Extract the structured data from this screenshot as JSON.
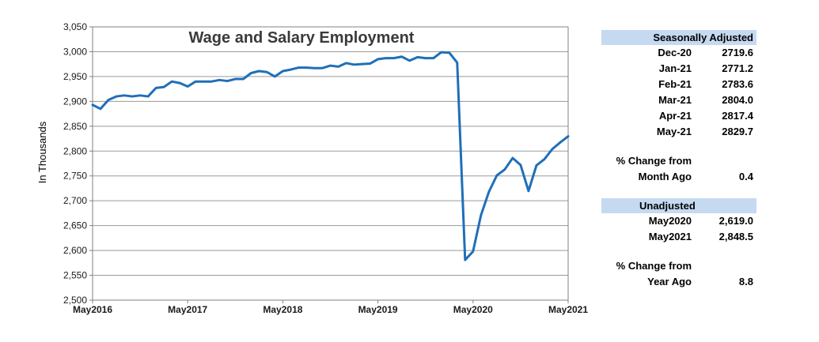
{
  "chart_data": {
    "type": "line",
    "title": "Wage and Salary Employment",
    "xlabel": "",
    "ylabel": "In Thousands",
    "ylim": [
      2500,
      3050
    ],
    "yticks": [
      2500,
      2550,
      2600,
      2650,
      2700,
      2750,
      2800,
      2850,
      2900,
      2950,
      3000,
      3050
    ],
    "ytick_labels": [
      "2,500",
      "2,550",
      "2,600",
      "2,650",
      "2,700",
      "2,750",
      "2,800",
      "2,850",
      "2,900",
      "2,950",
      "3,000",
      "3,050"
    ],
    "xticks": [
      "May2016",
      "May2017",
      "May2018",
      "May2019",
      "May2020",
      "May2021"
    ],
    "grid": "horizontal",
    "line_color": "#1f6fb9",
    "x": [
      "2016-05",
      "2016-06",
      "2016-07",
      "2016-08",
      "2016-09",
      "2016-10",
      "2016-11",
      "2016-12",
      "2017-01",
      "2017-02",
      "2017-03",
      "2017-04",
      "2017-05",
      "2017-06",
      "2017-07",
      "2017-08",
      "2017-09",
      "2017-10",
      "2017-11",
      "2017-12",
      "2018-01",
      "2018-02",
      "2018-03",
      "2018-04",
      "2018-05",
      "2018-06",
      "2018-07",
      "2018-08",
      "2018-09",
      "2018-10",
      "2018-11",
      "2018-12",
      "2019-01",
      "2019-02",
      "2019-03",
      "2019-04",
      "2019-05",
      "2019-06",
      "2019-07",
      "2019-08",
      "2019-09",
      "2019-10",
      "2019-11",
      "2019-12",
      "2020-01",
      "2020-02",
      "2020-03",
      "2020-04",
      "2020-05",
      "2020-06",
      "2020-07",
      "2020-08",
      "2020-09",
      "2020-10",
      "2020-11",
      "2020-12",
      "2021-01",
      "2021-02",
      "2021-03",
      "2021-04",
      "2021-05"
    ],
    "series": [
      {
        "values": [
          2893,
          2885,
          2903,
          2910,
          2912,
          2910,
          2912,
          2910,
          2927,
          2929,
          2940,
          2937,
          2930,
          2940,
          2940,
          2940,
          2943,
          2941,
          2945,
          2945,
          2957,
          2961,
          2959,
          2950,
          2961,
          2964,
          2968,
          2968,
          2967,
          2967,
          2972,
          2970,
          2977,
          2974,
          2975,
          2976,
          2985,
          2987,
          2987,
          2990,
          2982,
          2989,
          2987,
          2987,
          2999,
          2998,
          2978,
          2581,
          2598,
          2671,
          2718,
          2751,
          2763,
          2786,
          2772,
          2719.6,
          2771.2,
          2783.6,
          2804.0,
          2817.4,
          2829.7
        ]
      }
    ]
  },
  "panel": {
    "seasonally_adjusted_header": "Seasonally Adjusted",
    "sa_rows": [
      {
        "label": "Dec-20",
        "value": "2719.6"
      },
      {
        "label": "Jan-21",
        "value": "2771.2"
      },
      {
        "label": "Feb-21",
        "value": "2783.6"
      },
      {
        "label": "Mar-21",
        "value": "2804.0"
      },
      {
        "label": "Apr-21",
        "value": "2817.4"
      },
      {
        "label": "May-21",
        "value": "2829.7"
      }
    ],
    "pct_change_from_1": "% Change from",
    "month_ago_label": "Month Ago",
    "month_ago_value": "0.4",
    "unadjusted_header": "Unadjusted",
    "ua_rows": [
      {
        "label": "May2020",
        "value": "2,619.0"
      },
      {
        "label": "May2021",
        "value": "2,848.5"
      }
    ],
    "pct_change_from_2": "% Change from",
    "year_ago_label": "Year Ago",
    "year_ago_value": "8.8"
  }
}
